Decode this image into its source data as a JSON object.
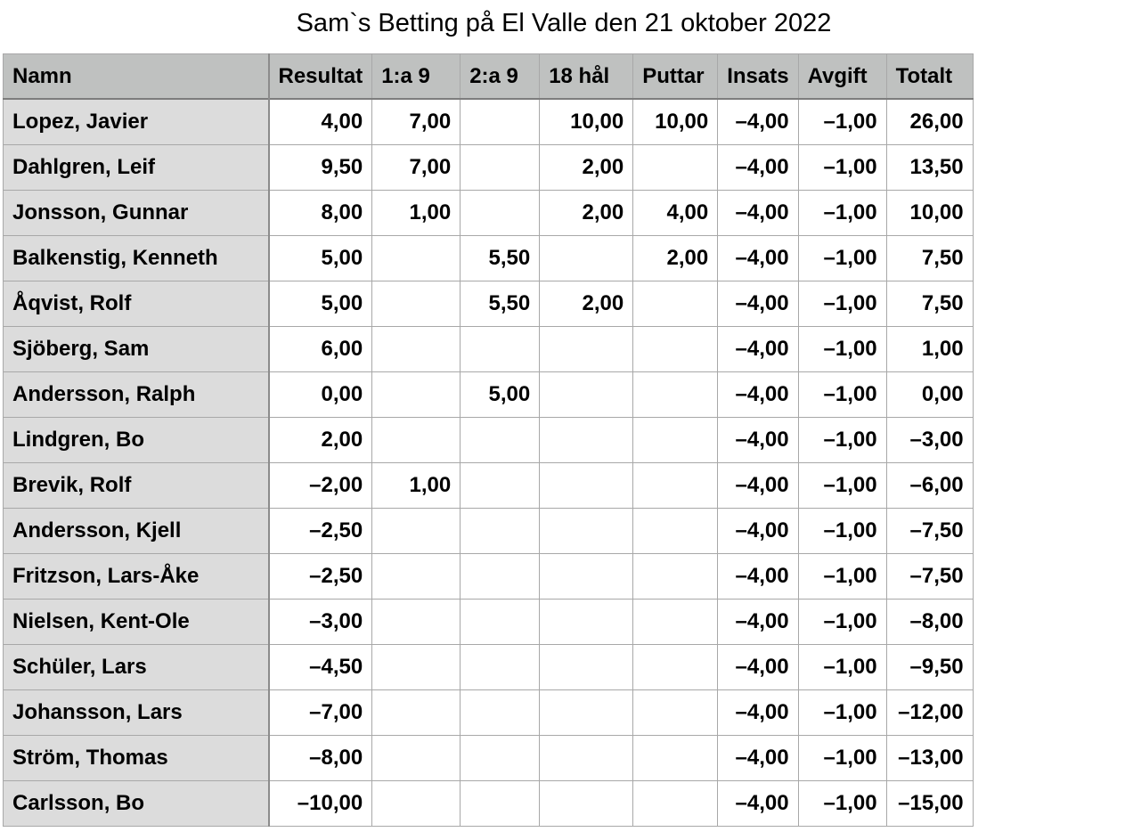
{
  "title": "Sam`s Betting på El Valle den 21 oktober 2022",
  "columns": [
    "Namn",
    "Resultat",
    "1:a 9",
    "2:a 9",
    "18 hål",
    "Puttar",
    "Insats",
    "Avgift",
    "Totalt"
  ],
  "rows": [
    {
      "name": "Lopez, Javier",
      "resultat": "4,00",
      "forsta9": "7,00",
      "andra9": "",
      "hal18": "10,00",
      "puttar": "10,00",
      "insats": "–4,00",
      "avgift": "–1,00",
      "totalt": "26,00"
    },
    {
      "name": "Dahlgren, Leif",
      "resultat": "9,50",
      "forsta9": "7,00",
      "andra9": "",
      "hal18": "2,00",
      "puttar": "",
      "insats": "–4,00",
      "avgift": "–1,00",
      "totalt": "13,50"
    },
    {
      "name": "Jonsson, Gunnar",
      "resultat": "8,00",
      "forsta9": "1,00",
      "andra9": "",
      "hal18": "2,00",
      "puttar": "4,00",
      "insats": "–4,00",
      "avgift": "–1,00",
      "totalt": "10,00"
    },
    {
      "name": "Balkenstig, Kenneth",
      "resultat": "5,00",
      "forsta9": "",
      "andra9": "5,50",
      "hal18": "",
      "puttar": "2,00",
      "insats": "–4,00",
      "avgift": "–1,00",
      "totalt": "7,50"
    },
    {
      "name": "Åqvist, Rolf",
      "resultat": "5,00",
      "forsta9": "",
      "andra9": "5,50",
      "hal18": "2,00",
      "puttar": "",
      "insats": "–4,00",
      "avgift": "–1,00",
      "totalt": "7,50"
    },
    {
      "name": "Sjöberg, Sam",
      "resultat": "6,00",
      "forsta9": "",
      "andra9": "",
      "hal18": "",
      "puttar": "",
      "insats": "–4,00",
      "avgift": "–1,00",
      "totalt": "1,00"
    },
    {
      "name": "Andersson, Ralph",
      "resultat": "0,00",
      "forsta9": "",
      "andra9": "5,00",
      "hal18": "",
      "puttar": "",
      "insats": "–4,00",
      "avgift": "–1,00",
      "totalt": "0,00"
    },
    {
      "name": "Lindgren, Bo",
      "resultat": "2,00",
      "forsta9": "",
      "andra9": "",
      "hal18": "",
      "puttar": "",
      "insats": "–4,00",
      "avgift": "–1,00",
      "totalt": "–3,00"
    },
    {
      "name": "Brevik, Rolf",
      "resultat": "–2,00",
      "forsta9": "1,00",
      "andra9": "",
      "hal18": "",
      "puttar": "",
      "insats": "–4,00",
      "avgift": "–1,00",
      "totalt": "–6,00"
    },
    {
      "name": "Andersson, Kjell",
      "resultat": "–2,50",
      "forsta9": "",
      "andra9": "",
      "hal18": "",
      "puttar": "",
      "insats": "–4,00",
      "avgift": "–1,00",
      "totalt": "–7,50"
    },
    {
      "name": "Fritzson, Lars-Åke",
      "resultat": "–2,50",
      "forsta9": "",
      "andra9": "",
      "hal18": "",
      "puttar": "",
      "insats": "–4,00",
      "avgift": "–1,00",
      "totalt": "–7,50"
    },
    {
      "name": "Nielsen, Kent-Ole",
      "resultat": "–3,00",
      "forsta9": "",
      "andra9": "",
      "hal18": "",
      "puttar": "",
      "insats": "–4,00",
      "avgift": "–1,00",
      "totalt": "–8,00"
    },
    {
      "name": "Schüler, Lars",
      "resultat": "–4,50",
      "forsta9": "",
      "andra9": "",
      "hal18": "",
      "puttar": "",
      "insats": "–4,00",
      "avgift": "–1,00",
      "totalt": "–9,50"
    },
    {
      "name": "Johansson, Lars",
      "resultat": "–7,00",
      "forsta9": "",
      "andra9": "",
      "hal18": "",
      "puttar": "",
      "insats": "–4,00",
      "avgift": "–1,00",
      "totalt": "–12,00"
    },
    {
      "name": "Ström, Thomas",
      "resultat": "–8,00",
      "forsta9": "",
      "andra9": "",
      "hal18": "",
      "puttar": "",
      "insats": "–4,00",
      "avgift": "–1,00",
      "totalt": "–13,00"
    },
    {
      "name": "Carlsson, Bo",
      "resultat": "–10,00",
      "forsta9": "",
      "andra9": "",
      "hal18": "",
      "puttar": "",
      "insats": "–4,00",
      "avgift": "–1,00",
      "totalt": "–15,00"
    }
  ],
  "colors": {
    "header_bg": "#bfc1c0",
    "name_column_bg": "#dcdcdc",
    "grid_line": "#a8a8a8"
  }
}
